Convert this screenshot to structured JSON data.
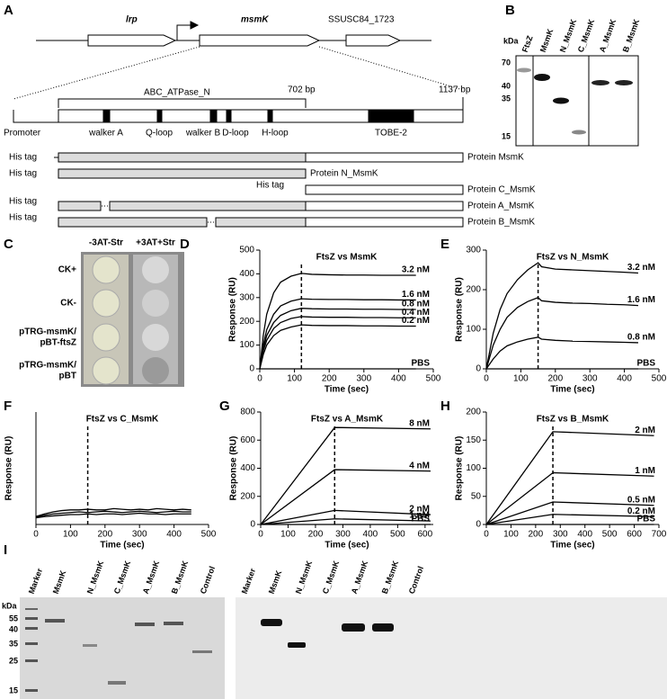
{
  "panel_labels": [
    "A",
    "B",
    "C",
    "D",
    "E",
    "F",
    "G",
    "H",
    "I"
  ],
  "gene_map": {
    "genes": [
      "lrp",
      "msmK",
      "SSUSC84_1723"
    ],
    "domain": "ABC_ATPase_N",
    "position_1": "702 bp",
    "position_2": "1137 bp",
    "promoter": "Promoter",
    "motifs": [
      "walker A",
      "Q-loop",
      "walker B",
      "D-loop",
      "H-loop",
      "TOBE-2"
    ],
    "constructs": [
      {
        "tag": "His tag",
        "protein": "Protein MsmK"
      },
      {
        "tag": "His tag",
        "protein": "Protein N_MsmK"
      },
      {
        "tag": "His tag",
        "protein": "Protein C_MsmK"
      },
      {
        "tag": "His tag",
        "protein": "Protein A_MsmK"
      },
      {
        "tag": "His tag",
        "protein": "Protein B_MsmK"
      }
    ]
  },
  "blot_b": {
    "unit": "kDa",
    "markers": [
      "70",
      "40",
      "35",
      "15"
    ],
    "lanes": [
      "FtsZ",
      "MsmK",
      "N_MsmK",
      "C_MsmK",
      "A_MsmK",
      "B_MsmK"
    ]
  },
  "two_hybrid_c": {
    "columns": [
      "-3AT-Str",
      "+3AT+Str"
    ],
    "rows": [
      [
        "CK+"
      ],
      [
        "CK-"
      ],
      [
        "pTRG-msmK/",
        "pBT-ftsZ"
      ],
      [
        "pTRG-msmK/",
        "pBT"
      ]
    ]
  },
  "chart_data": [
    {
      "type": "line",
      "title": "FtsZ vs MsmK",
      "x_label": "Time (sec)",
      "y_label": "Response (RU)",
      "xlim": [
        0,
        500
      ],
      "xticks": [
        0,
        100,
        200,
        300,
        400,
        500
      ],
      "ylim": [
        0,
        500
      ],
      "yticks": [
        0,
        100,
        200,
        300,
        400,
        500
      ],
      "injection_end": 120,
      "x": [
        0,
        10,
        20,
        40,
        60,
        90,
        120,
        150,
        200,
        250,
        300,
        350,
        400,
        450
      ],
      "series": [
        {
          "name": "3.2 nM",
          "color": "#000000",
          "values": [
            0,
            140,
            230,
            320,
            365,
            390,
            402,
            398,
            396,
            395,
            395,
            394,
            394,
            394
          ]
        },
        {
          "name": "1.6 nM",
          "color": "#000000",
          "values": [
            0,
            100,
            165,
            230,
            265,
            285,
            295,
            293,
            292,
            292,
            291,
            291,
            290,
            290
          ]
        },
        {
          "name": "0.8 nM",
          "color": "#000000",
          "values": [
            0,
            85,
            140,
            195,
            225,
            245,
            255,
            253,
            252,
            252,
            251,
            251,
            250,
            250
          ]
        },
        {
          "name": "0.4 nM",
          "color": "#000000",
          "values": [
            0,
            75,
            120,
            170,
            195,
            212,
            220,
            218,
            217,
            217,
            216,
            216,
            215,
            215
          ]
        },
        {
          "name": "0.2 nM",
          "color": "#000000",
          "values": [
            0,
            60,
            100,
            140,
            162,
            176,
            185,
            183,
            182,
            182,
            181,
            181,
            180,
            180
          ]
        },
        {
          "name": "PBS",
          "color": "#000000",
          "values": [
            0,
            0,
            0,
            0,
            0,
            0,
            0,
            0,
            0,
            0,
            0,
            0,
            0,
            0
          ]
        }
      ]
    },
    {
      "type": "line",
      "title": "FtsZ vs N_MsmK",
      "x_label": "Time (sec)",
      "y_label": "Response (RU)",
      "xlim": [
        0,
        500
      ],
      "xticks": [
        0,
        100,
        200,
        300,
        400,
        500
      ],
      "ylim": [
        0,
        300
      ],
      "yticks": [
        0,
        100,
        200,
        300
      ],
      "injection_end": 150,
      "x": [
        0,
        20,
        40,
        60,
        90,
        120,
        150,
        160,
        200,
        250,
        300,
        350,
        400,
        440
      ],
      "series": [
        {
          "name": "3.2 nM",
          "color": "#000000",
          "values": [
            0,
            90,
            150,
            190,
            225,
            250,
            268,
            258,
            252,
            250,
            248,
            246,
            244,
            242
          ]
        },
        {
          "name": "1.6 nM",
          "color": "#000000",
          "values": [
            0,
            60,
            100,
            130,
            155,
            170,
            180,
            172,
            168,
            166,
            165,
            163,
            162,
            160
          ]
        },
        {
          "name": "0.8 nM",
          "color": "#000000",
          "values": [
            0,
            25,
            45,
            58,
            68,
            75,
            80,
            75,
            72,
            70,
            69,
            68,
            67,
            66
          ]
        },
        {
          "name": "PBS",
          "color": "#000000",
          "values": [
            0,
            0,
            0,
            0,
            0,
            0,
            0,
            0,
            0,
            0,
            0,
            0,
            0,
            0
          ]
        }
      ]
    },
    {
      "type": "line",
      "title": "FtsZ vs C_MsmK",
      "x_label": "Time (sec)",
      "y_label": "Response (RU)",
      "xlim": [
        0,
        500
      ],
      "xticks": [
        0,
        100,
        200,
        300,
        400,
        500
      ],
      "ylim": [
        -10,
        160
      ],
      "injection_end": 150,
      "x": [
        0,
        25,
        50,
        75,
        100,
        125,
        150,
        175,
        200,
        225,
        250,
        275,
        300,
        325,
        350,
        375,
        400,
        425,
        450
      ],
      "series": [
        {
          "color": "#000000",
          "values": [
            2,
            6,
            9,
            11,
            12,
            12,
            13,
            12,
            12,
            14,
            13,
            12,
            13,
            12,
            14,
            13,
            12,
            13,
            12
          ]
        },
        {
          "color": "#000000",
          "values": [
            1,
            4,
            6,
            7,
            8,
            9,
            8,
            9,
            10,
            9,
            8,
            9,
            10,
            9,
            8,
            9,
            10,
            9,
            9
          ]
        },
        {
          "color": "#000000",
          "values": [
            0,
            2,
            3,
            4,
            5,
            5,
            6,
            5,
            6,
            6,
            5,
            6,
            7,
            6,
            6,
            5,
            6,
            6,
            6
          ]
        }
      ]
    },
    {
      "type": "line",
      "title": "FtsZ vs A_MsmK",
      "x_label": "Time (sec)",
      "y_label": "Response (RU)",
      "xlim": [
        0,
        630
      ],
      "xticks": [
        0,
        100,
        200,
        300,
        400,
        500,
        600
      ],
      "ylim": [
        0,
        800
      ],
      "yticks": [
        0,
        200,
        400,
        600,
        800
      ],
      "injection_end": 270,
      "x": [
        0,
        270,
        620
      ],
      "series": [
        {
          "name": "8 nM",
          "color": "#000000",
          "values": [
            0,
            690,
            680
          ]
        },
        {
          "name": "4 nM",
          "color": "#000000",
          "values": [
            0,
            390,
            380
          ]
        },
        {
          "name": "2 nM",
          "color": "#000000",
          "values": [
            0,
            100,
            70
          ]
        },
        {
          "name": "1 nM",
          "color": "#000000",
          "values": [
            0,
            40,
            25
          ]
        },
        {
          "name": "PBS",
          "color": "#000000",
          "values": [
            0,
            0,
            0
          ]
        }
      ]
    },
    {
      "type": "line",
      "title": "FtsZ vs B_MsmK",
      "x_label": "Time (sec)",
      "y_label": "Response (RU)",
      "xlim": [
        0,
        700
      ],
      "xticks": [
        0,
        100,
        200,
        300,
        400,
        500,
        600,
        700
      ],
      "ylim": [
        0,
        200
      ],
      "yticks": [
        0,
        50,
        100,
        150,
        200
      ],
      "injection_end": 270,
      "x": [
        0,
        270,
        680
      ],
      "series": [
        {
          "name": "2 nM",
          "color": "#000000",
          "values": [
            0,
            165,
            158
          ]
        },
        {
          "name": "1 nM",
          "color": "#000000",
          "values": [
            0,
            92,
            86
          ]
        },
        {
          "name": "0.5 nM",
          "color": "#000000",
          "values": [
            0,
            40,
            34
          ]
        },
        {
          "name": "0.2 nM",
          "color": "#000000",
          "values": [
            0,
            18,
            14
          ]
        },
        {
          "name": "PBS",
          "color": "#000000",
          "values": [
            0,
            0,
            0
          ]
        }
      ]
    }
  ],
  "gel_i": {
    "unit": "kDa",
    "markers": [
      "55",
      "40",
      "35",
      "25",
      "15"
    ],
    "gels": [
      {
        "lanes": [
          "Marker",
          "MsmK",
          "N_MsmK",
          "C_MsmK",
          "A_MsmK",
          "B_MsmK",
          "Control"
        ]
      },
      {
        "lanes": [
          "Marker",
          "MsmK",
          "N_MsmK",
          "C_MsmK",
          "A_MsmK",
          "B_MsmK",
          "Control"
        ]
      }
    ]
  }
}
